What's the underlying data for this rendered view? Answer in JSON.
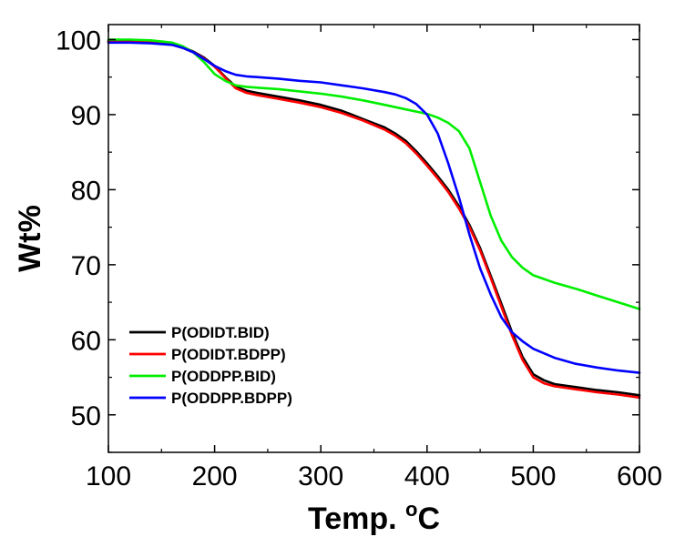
{
  "chart_data": {
    "type": "line",
    "title": "",
    "xlabel": "Temp. °C",
    "xlabel_main": "Temp. ",
    "xlabel_sup": "o",
    "xlabel_unit": "C",
    "ylabel": "Wt%",
    "xlim": [
      100,
      600
    ],
    "ylim": [
      45,
      102
    ],
    "xticks": [
      100,
      200,
      300,
      400,
      500,
      600
    ],
    "yticks": [
      50,
      60,
      70,
      80,
      90,
      100
    ],
    "grid": false,
    "legend_position": "bottom-left",
    "series": [
      {
        "name": "P(ODIDT.BID)",
        "color": "#000000",
        "x": [
          100,
          120,
          140,
          160,
          170,
          180,
          190,
          200,
          210,
          220,
          230,
          240,
          260,
          280,
          300,
          320,
          340,
          360,
          370,
          380,
          390,
          400,
          410,
          420,
          430,
          440,
          450,
          460,
          470,
          480,
          490,
          500,
          510,
          520,
          540,
          560,
          580,
          600
        ],
        "y": [
          99.8,
          99.8,
          99.7,
          99.4,
          99.0,
          98.4,
          97.6,
          96.5,
          95.0,
          93.7,
          93.2,
          92.9,
          92.4,
          91.9,
          91.3,
          90.5,
          89.4,
          88.3,
          87.5,
          86.5,
          85.1,
          83.5,
          81.8,
          80.0,
          77.8,
          75.3,
          72.2,
          68.5,
          64.8,
          61.0,
          57.7,
          55.4,
          54.6,
          54.1,
          53.7,
          53.3,
          53.0,
          52.6
        ]
      },
      {
        "name": "P(ODIDT.BDPP)",
        "color": "#ff0000",
        "x": [
          100,
          120,
          140,
          160,
          170,
          180,
          190,
          200,
          210,
          220,
          230,
          240,
          260,
          280,
          300,
          320,
          340,
          360,
          370,
          380,
          390,
          400,
          410,
          420,
          430,
          440,
          450,
          460,
          470,
          480,
          490,
          500,
          510,
          520,
          540,
          560,
          580,
          600
        ],
        "y": [
          99.7,
          99.7,
          99.6,
          99.3,
          98.9,
          98.3,
          97.5,
          96.4,
          94.9,
          93.5,
          92.9,
          92.6,
          92.1,
          91.6,
          91.0,
          90.2,
          89.2,
          88.0,
          87.2,
          86.2,
          84.8,
          83.2,
          81.5,
          79.7,
          77.5,
          75.0,
          71.9,
          68.2,
          64.4,
          60.6,
          57.3,
          55.0,
          54.2,
          53.8,
          53.4,
          53.0,
          52.7,
          52.3
        ]
      },
      {
        "name": "P(ODDPP.BID)",
        "color": "#00ee00",
        "x": [
          100,
          120,
          140,
          160,
          170,
          180,
          190,
          200,
          210,
          220,
          230,
          240,
          260,
          280,
          300,
          320,
          340,
          360,
          380,
          400,
          410,
          420,
          430,
          440,
          450,
          460,
          470,
          480,
          490,
          500,
          520,
          540,
          560,
          580,
          600
        ],
        "y": [
          100.0,
          100.0,
          99.9,
          99.6,
          99.1,
          98.3,
          97.0,
          95.4,
          94.5,
          93.9,
          93.7,
          93.6,
          93.4,
          93.1,
          92.8,
          92.4,
          91.9,
          91.3,
          90.7,
          90.1,
          89.6,
          88.9,
          87.8,
          85.5,
          81.0,
          76.5,
          73.2,
          71.0,
          69.6,
          68.6,
          67.6,
          66.8,
          65.9,
          65.0,
          64.1
        ]
      },
      {
        "name": "P(ODDPP.BDPP)",
        "color": "#0000ff",
        "x": [
          100,
          120,
          140,
          160,
          170,
          180,
          190,
          200,
          210,
          220,
          230,
          240,
          260,
          280,
          300,
          320,
          340,
          360,
          370,
          380,
          390,
          400,
          410,
          420,
          430,
          440,
          450,
          460,
          470,
          480,
          490,
          500,
          520,
          540,
          560,
          580,
          600
        ],
        "y": [
          99.6,
          99.6,
          99.5,
          99.3,
          98.9,
          98.3,
          97.4,
          96.5,
          95.8,
          95.3,
          95.1,
          95.0,
          94.8,
          94.5,
          94.3,
          93.9,
          93.5,
          93.0,
          92.7,
          92.2,
          91.4,
          90.0,
          87.5,
          83.5,
          79.0,
          74.0,
          69.5,
          66.0,
          63.0,
          61.0,
          59.8,
          58.8,
          57.6,
          56.8,
          56.3,
          55.9,
          55.6
        ]
      }
    ]
  }
}
